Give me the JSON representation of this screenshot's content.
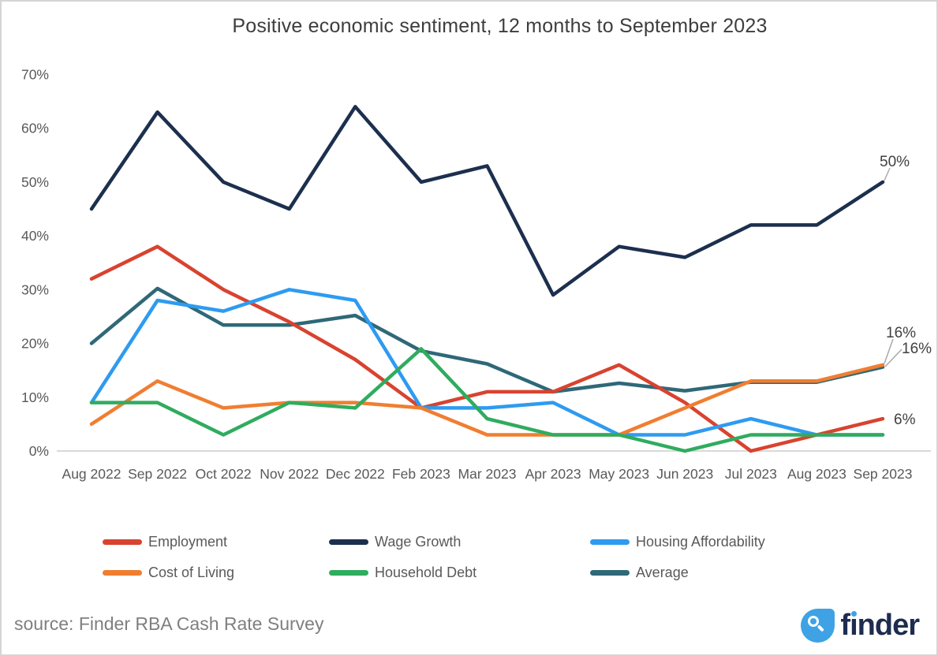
{
  "title": "Positive economic sentiment, 12 months to September 2023",
  "source": "source: Finder RBA Cash Rate Survey",
  "logo_text": "finder",
  "colors": {
    "background": "#ffffff",
    "border": "#d4d4d4",
    "title_text": "#3d3d3d",
    "axis_text": "#595959",
    "baseline": "#d9d9d9",
    "leader_line": "#a8a8a8",
    "annotation_text": "#3f3f3f",
    "source_text": "#7f7f7f",
    "logo_blue": "#3EA2E5",
    "logo_navy": "#1D2C4F"
  },
  "chart_data": {
    "type": "line",
    "title": "Positive economic sentiment, 12 months to September 2023",
    "categories": [
      "Aug 2022",
      "Sep 2022",
      "Oct 2022",
      "Nov 2022",
      "Dec 2022",
      "Feb 2023",
      "Mar 2023",
      "Apr 2023",
      "May 2023",
      "Jun 2023",
      "Jul 2023",
      "Aug 2023",
      "Sep 2023"
    ],
    "ylim": [
      0,
      70
    ],
    "ytick_step": 10,
    "ytick_suffix": "%",
    "grid": "baseline only",
    "legend_position": "bottom",
    "series": [
      {
        "name": "Employment",
        "color": "#D8432F",
        "values": [
          32,
          38,
          30,
          24,
          17,
          8,
          11,
          11,
          16,
          9,
          0,
          3,
          6
        ]
      },
      {
        "name": "Wage Growth",
        "color": "#1D2F4E",
        "values": [
          45,
          63,
          50,
          45,
          64,
          50,
          53,
          29,
          38,
          36,
          42,
          42,
          50
        ]
      },
      {
        "name": "Housing Affordability",
        "color": "#2E9BF0",
        "values": [
          9,
          28,
          26,
          30,
          28,
          8,
          8,
          9,
          3,
          3,
          6,
          3,
          3
        ]
      },
      {
        "name": "Cost of Living",
        "color": "#F07E31",
        "values": [
          5,
          13,
          8,
          9,
          9,
          8,
          3,
          3,
          3,
          8,
          13,
          13,
          16
        ]
      },
      {
        "name": "Household Debt",
        "color": "#2FAC5E",
        "values": [
          9,
          9,
          3,
          9,
          8,
          19,
          6,
          3,
          3,
          0,
          3,
          3,
          3
        ]
      },
      {
        "name": "Average",
        "color": "#2F6878",
        "values": [
          20,
          30.2,
          23.4,
          23.4,
          25.2,
          18.6,
          16.2,
          11,
          12.6,
          11.2,
          12.8,
          12.8,
          15.6
        ]
      }
    ],
    "annotations": [
      {
        "series": "Wage Growth",
        "text": "50%"
      },
      {
        "series": "Cost of Living",
        "text": "16%"
      },
      {
        "series": "Average",
        "text": "16%"
      },
      {
        "series": "Employment",
        "text": "6%"
      }
    ]
  }
}
